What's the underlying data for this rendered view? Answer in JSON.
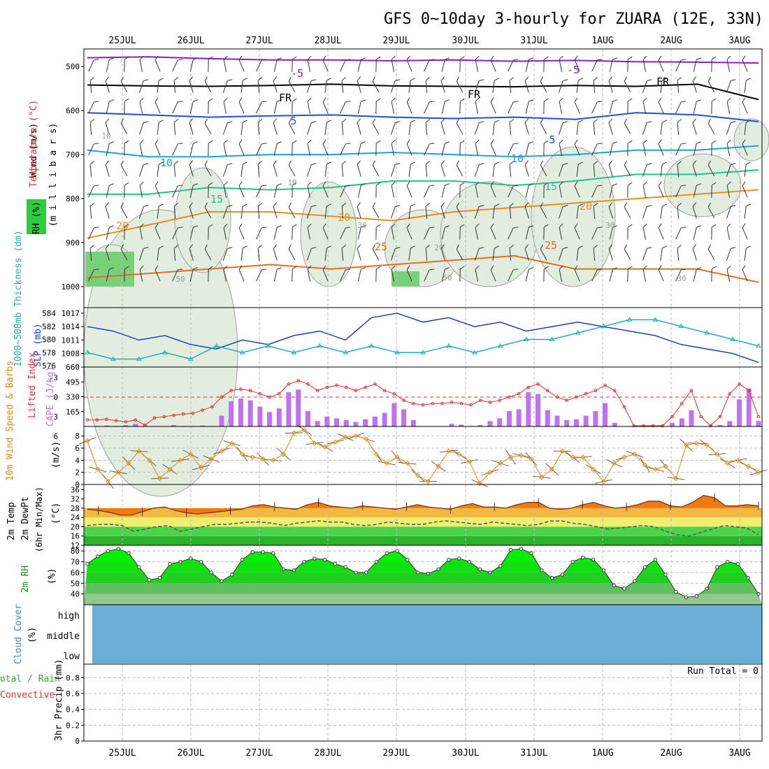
{
  "title": "GFS 0~10day 3-hourly for ZUARA (12E, 33N)",
  "dates": [
    "25JUL",
    "26JUL",
    "27JUL",
    "28JUL",
    "29JUL",
    "30JUL",
    "31JUL",
    "1AUG",
    "2AUG",
    "3AUG"
  ],
  "colors": {
    "grid": "#bbbbbb",
    "axis": "#000000",
    "rh_green": "#2ecc40",
    "cloud": "#6baed6",
    "cape": "#c070f0",
    "li": "#e03030",
    "slp": "#2040c0",
    "thick": "#20b0b0",
    "wind": "#e08a10",
    "temp_fill": "#f07a10",
    "dew": "#555555"
  },
  "chart_data": [
    {
      "type": "line",
      "panel": "upper-air",
      "ylabel": [
        "Wind (m/s)",
        "Temperature (°C)",
        "RH (%)",
        "(m i l l i b a r s)"
      ],
      "y_ticks": [
        500,
        600,
        700,
        800,
        900,
        1000
      ],
      "ylim": [
        1000,
        460
      ],
      "series": [
        {
          "name": "-5",
          "color": "#8a20c0",
          "pressure": [
            480,
            478,
            482,
            485,
            485,
            487,
            485,
            488,
            486,
            489,
            490,
            492
          ]
        },
        {
          "name": "FR",
          "color": "#000000",
          "pressure": [
            542,
            544,
            545,
            543,
            540,
            544,
            545,
            546,
            543,
            545,
            540,
            575
          ]
        },
        {
          "name": "5",
          "color": "#2050d0",
          "pressure": [
            605,
            610,
            615,
            612,
            610,
            615,
            618,
            615,
            620,
            605,
            610,
            625
          ]
        },
        {
          "name": "10",
          "color": "#20a0e0",
          "pressure": [
            690,
            705,
            705,
            700,
            700,
            695,
            700,
            705,
            700,
            690,
            690,
            680
          ]
        },
        {
          "name": "15",
          "color": "#20c090",
          "pressure": [
            790,
            790,
            775,
            780,
            775,
            760,
            760,
            770,
            760,
            745,
            745,
            735
          ]
        },
        {
          "name": "20",
          "color": "#e09020",
          "pressure": [
            890,
            860,
            830,
            830,
            840,
            850,
            830,
            820,
            810,
            800,
            790,
            780
          ]
        },
        {
          "name": "25",
          "color": "#e07020",
          "pressure": [
            980,
            970,
            960,
            950,
            960,
            950,
            940,
            930,
            960,
            960,
            960,
            990
          ]
        }
      ],
      "contour_labels": [
        "-5",
        "-5",
        "FR",
        "FR",
        "FR",
        "5",
        "5",
        "10",
        "10",
        "15",
        "15",
        "20",
        "20",
        "20",
        "25",
        "25",
        "10",
        "10",
        "30",
        "30",
        "50",
        "50",
        "20",
        "30"
      ]
    },
    {
      "type": "line",
      "panel": "slp-thickness",
      "ylabel_left": "1000~500mb Thickness (dm)",
      "ylabel_right": "SLP (mb)",
      "thick_ticks": [
        576,
        578,
        580,
        582,
        584
      ],
      "slp_ticks": [
        1008,
        1011,
        1014,
        1017
      ],
      "series": [
        {
          "name": "SLP (mb)",
          "values": [
            1014,
            1013,
            1011,
            1012,
            1010,
            1009,
            1011,
            1010,
            1012,
            1013,
            1011,
            1016,
            1017,
            1015,
            1016,
            1014,
            1015,
            1013,
            1014,
            1015,
            1014,
            1013,
            1012,
            1010,
            1009,
            1008,
            1006
          ]
        },
        {
          "name": "1000~500mb Thickness (dm)",
          "values": [
            578,
            577,
            577,
            578,
            577,
            579,
            578,
            579,
            578,
            579,
            578,
            579,
            578,
            578,
            579,
            578,
            579,
            580,
            580,
            581,
            582,
            583,
            583,
            582,
            581,
            580,
            579
          ]
        }
      ]
    },
    {
      "type": "bar",
      "panel": "cape-li",
      "ylabel_left": "Lifted Index",
      "ylabel_right": "CAPE (J/kg)",
      "li_ticks": [
        "-3",
        "0",
        "3",
        "6"
      ],
      "cape_ticks": [
        165,
        330,
        495,
        660
      ],
      "cape_values": [
        5,
        5,
        10,
        5,
        15,
        30,
        10,
        0,
        0,
        15,
        5,
        5,
        10,
        5,
        120,
        280,
        310,
        290,
        220,
        160,
        200,
        380,
        410,
        170,
        60,
        110,
        90,
        70,
        50,
        80,
        110,
        150,
        260,
        190,
        70,
        0,
        0,
        0,
        30,
        20,
        5,
        15,
        60,
        90,
        170,
        190,
        380,
        360,
        180,
        120,
        70,
        80,
        120,
        170,
        260,
        40,
        0,
        0,
        0,
        0,
        0,
        40,
        90,
        180,
        0,
        0,
        15,
        60,
        300,
        420,
        60
      ],
      "li_values": [
        3.5,
        3.5,
        3.4,
        3.6,
        3.8,
        3.5,
        4.3,
        3.2,
        3.0,
        2.8,
        2.6,
        2.5,
        2.0,
        1.5,
        0.0,
        -1.0,
        -1.2,
        -1.0,
        -0.5,
        0.0,
        -0.5,
        -2.0,
        -2.5,
        -2.0,
        -1.0,
        -1.5,
        -1.8,
        -1.5,
        -1.0,
        -1.5,
        -2.0,
        -1.0,
        -0.5,
        0.5,
        1.0,
        1.2,
        1.0,
        1.0,
        0.8,
        1.0,
        1.2,
        0.5,
        0.8,
        0.5,
        0.0,
        -0.5,
        -1.5,
        -2.0,
        -1.0,
        0.0,
        0.5,
        0.0,
        -0.5,
        -1.0,
        -1.8,
        -1.0,
        1.5,
        4.5,
        5.0,
        4.5,
        5.5,
        3.0,
        1.0,
        -1.0,
        3.0,
        6.0,
        3.0,
        -0.5,
        -2.0,
        -1.0,
        3.0
      ]
    },
    {
      "type": "line",
      "panel": "wind",
      "ylabel": [
        "10m Wind Speed & Barbs",
        "(m/s)"
      ],
      "y_ticks": [
        0,
        2,
        4,
        6,
        8
      ],
      "values": [
        7.2,
        2.5,
        0.5,
        2.0,
        3.5,
        5.5,
        4.0,
        1.0,
        2.5,
        4.0,
        5.0,
        2.8,
        4.2,
        5.5,
        6.8,
        5.0,
        4.5,
        4.2,
        4.0,
        5.0,
        8.5,
        9.0,
        6.8,
        6.2,
        7.0,
        7.8,
        8.0,
        7.5,
        5.0,
        3.5,
        4.5,
        3.5,
        1.5,
        0.5,
        3.0,
        5.5,
        5.0,
        3.8,
        0.2,
        2.0,
        3.5,
        4.5,
        4.8,
        4.2,
        1.2,
        2.5,
        5.5,
        4.5,
        4.5,
        2.5,
        0.5,
        3.5,
        4.5,
        5.0,
        3.2,
        2.5,
        3.0,
        1.0,
        6.5,
        6.8,
        6.5,
        5.0,
        3.5,
        4.0,
        3.0,
        2.0
      ]
    },
    {
      "type": "area",
      "panel": "temp-dew",
      "ylabel": [
        "2m Temp",
        "2m DewPt",
        "(6hr Min/Max)",
        "(°C)"
      ],
      "y_ticks": [
        12,
        16,
        20,
        24,
        28,
        32,
        36
      ],
      "temp": [
        27.5,
        27.0,
        26.2,
        25.0,
        25.0,
        26.5,
        28.0,
        28.5,
        27.0,
        26.0,
        25.5,
        26.0,
        26.5,
        27.0,
        27.5,
        29.0,
        29.5,
        28.5,
        28.0,
        27.5,
        29.5,
        30.5,
        29.0,
        28.5,
        28.0,
        29.0,
        28.5,
        28.0,
        27.5,
        28.5,
        29.5,
        28.5,
        28.0,
        27.5,
        29.0,
        30.0,
        28.5,
        28.5,
        28.0,
        29.5,
        30.5,
        30.5,
        28.0,
        27.5,
        28.0,
        29.5,
        30.5,
        29.0,
        28.0,
        28.5,
        29.5,
        31.0,
        31.0,
        29.0,
        28.5,
        30.5,
        33.5,
        32.5,
        29.0,
        29.0,
        29.5,
        29.0
      ],
      "dew": [
        20.5,
        21.0,
        21.0,
        20.5,
        18.0,
        19.0,
        20.0,
        20.5,
        18.0,
        19.0,
        20.0,
        21.0,
        21.0,
        21.5,
        22.0,
        22.0,
        21.5,
        20.5,
        21.5,
        22.0,
        22.5,
        22.0,
        22.0,
        21.0,
        20.5,
        21.0,
        22.0,
        21.5,
        21.0,
        21.0,
        22.0,
        22.5,
        22.0,
        21.5,
        21.0,
        22.0,
        21.5,
        21.0,
        20.5,
        21.0,
        22.5,
        22.5,
        21.5,
        21.0,
        20.0,
        19.0,
        19.5,
        20.0,
        20.5,
        20.0,
        18.0,
        16.5,
        16.0,
        17.5,
        19.0,
        20.5,
        20.0,
        19.5,
        16.5
      ]
    },
    {
      "type": "area",
      "panel": "rh",
      "ylabel": [
        "2m RH",
        "(%)"
      ],
      "y_ticks": [
        40,
        50,
        60,
        70,
        80
      ],
      "values": [
        68,
        75,
        80,
        82,
        78,
        65,
        53,
        55,
        68,
        70,
        73,
        70,
        60,
        52,
        58,
        72,
        79,
        79,
        78,
        63,
        62,
        70,
        73,
        72,
        68,
        65,
        60,
        60,
        70,
        78,
        80,
        72,
        60,
        59,
        63,
        72,
        73,
        70,
        63,
        60,
        66,
        81,
        82,
        78,
        62,
        55,
        58,
        70,
        74,
        72,
        62,
        48,
        45,
        52,
        65,
        72,
        58,
        42,
        37,
        38,
        45,
        65,
        70,
        68,
        55,
        40
      ]
    },
    {
      "type": "heatmap",
      "panel": "cloud",
      "ylabel": [
        "Cloud Cover",
        "(%)"
      ],
      "y_ticks": [
        "high",
        "middle",
        "low"
      ]
    },
    {
      "type": "bar",
      "panel": "precip",
      "ylabel_left": [
        "Total / Rain",
        "Convective"
      ],
      "ylabel": [
        "3hr Precip (mm)"
      ],
      "y_ticks": [
        "0",
        "0.2",
        "0.4",
        "0.6",
        "0.8"
      ],
      "run_total": "Run Total = 0",
      "values": []
    }
  ]
}
